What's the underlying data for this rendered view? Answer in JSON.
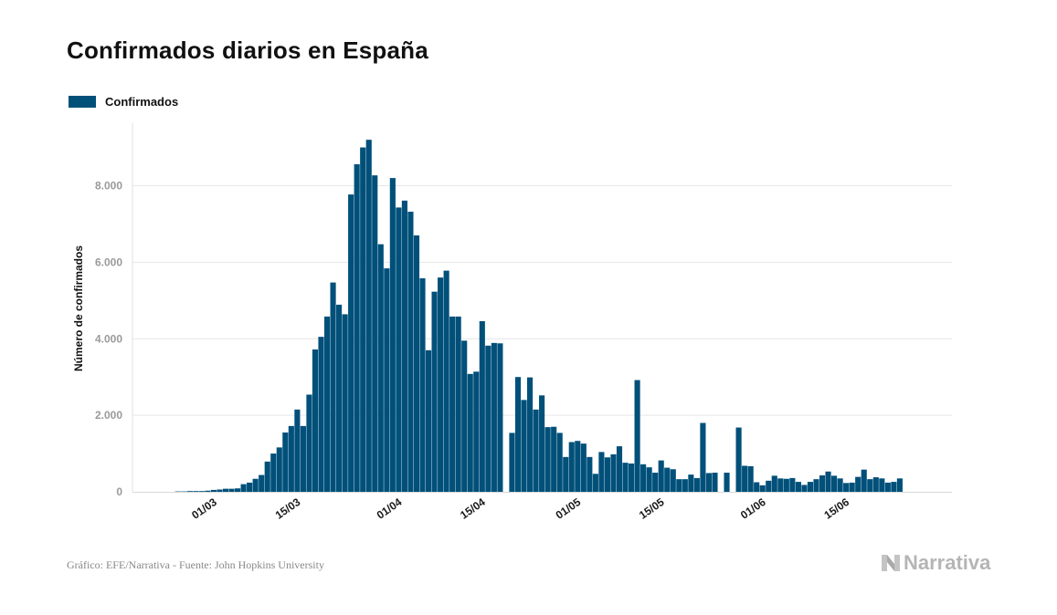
{
  "title": "Confirmados diarios en España",
  "legend": {
    "label": "Confirmados",
    "color": "#00507a"
  },
  "source": "Gráfico: EFE/Narrativa - Fuente: John Hopkins University",
  "brand": {
    "name": "Narrativa",
    "icon": "n-logo-icon"
  },
  "chart_data": {
    "type": "bar",
    "title": "Confirmados diarios en España",
    "ylabel": "Número de confirmados",
    "xlabel": "",
    "ylim": [
      0,
      9500
    ],
    "yticks": [
      0,
      2000,
      4000,
      6000,
      8000
    ],
    "ytick_labels": [
      "0",
      "2.000",
      "4.000",
      "6.000",
      "8.000"
    ],
    "xtick_labels": [
      {
        "label": "01/03",
        "index": 13
      },
      {
        "label": "15/03",
        "index": 27
      },
      {
        "label": "01/04",
        "index": 44
      },
      {
        "label": "15/04",
        "index": 58
      },
      {
        "label": "01/05",
        "index": 74
      },
      {
        "label": "15/05",
        "index": 88
      },
      {
        "label": "01/06",
        "index": 105
      },
      {
        "label": "15/06",
        "index": 119
      }
    ],
    "grid": true,
    "legend_position": "top-left",
    "series": [
      {
        "name": "Confirmados",
        "color": "#00507a",
        "values": [
          0,
          0,
          0,
          0,
          0,
          0,
          0,
          10,
          10,
          20,
          20,
          20,
          30,
          50,
          60,
          80,
          80,
          90,
          200,
          240,
          340,
          440,
          790,
          1000,
          1160,
          1550,
          1720,
          2150,
          1720,
          2540,
          3720,
          4050,
          4580,
          5470,
          4890,
          4640,
          7770,
          8560,
          9000,
          9200,
          8270,
          6470,
          5840,
          8200,
          7430,
          7610,
          7320,
          6700,
          5580,
          3700,
          5230,
          5600,
          5780,
          4580,
          4580,
          3950,
          3080,
          3140,
          4460,
          3820,
          3890,
          3880,
          0,
          1540,
          3000,
          2400,
          2990,
          2150,
          2520,
          1690,
          1700,
          1540,
          910,
          1300,
          1330,
          1260,
          910,
          470,
          1040,
          900,
          980,
          1190,
          760,
          740,
          2920,
          720,
          640,
          500,
          820,
          630,
          590,
          330,
          330,
          450,
          360,
          1800,
          490,
          500,
          0,
          500,
          0,
          1680,
          680,
          670,
          250,
          170,
          290,
          420,
          350,
          340,
          360,
          260,
          180,
          260,
          330,
          430,
          530,
          420,
          350,
          230,
          240,
          390,
          580,
          330,
          380,
          350,
          240,
          260,
          350
        ]
      }
    ]
  }
}
